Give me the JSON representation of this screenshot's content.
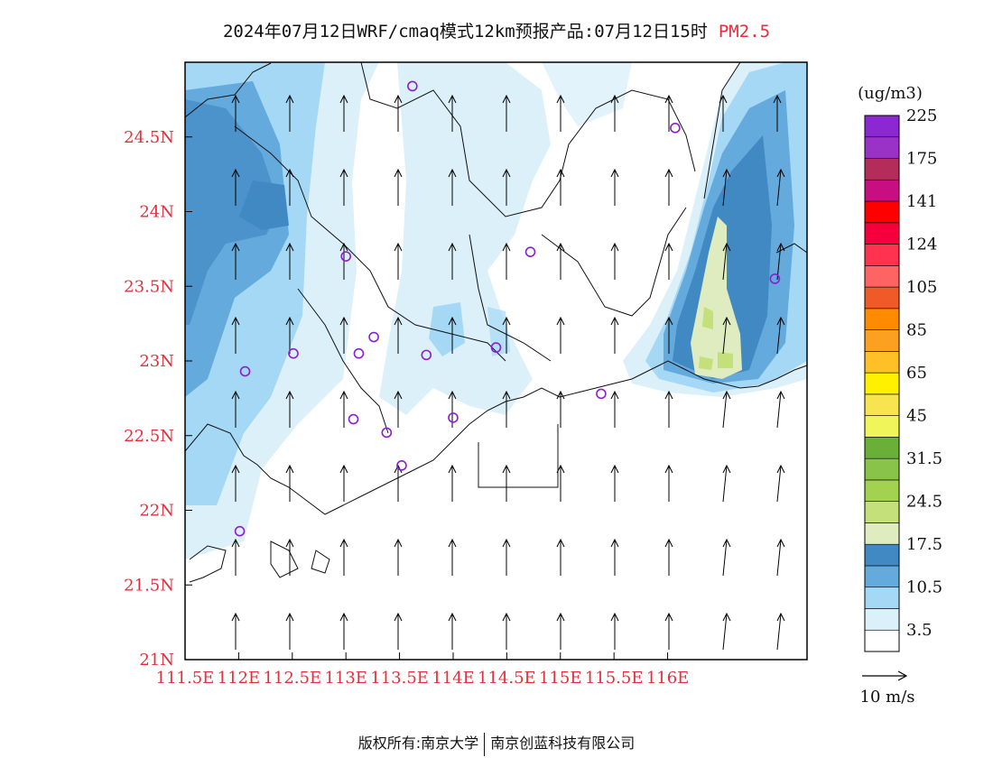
{
  "title": {
    "main": "2024年07月12日WRF/cmaq模式12km预报产品:07月12日15时",
    "variable": "PM2.5"
  },
  "map": {
    "lon_ticks": [
      "111.5E",
      "112E",
      "112.5E",
      "113E",
      "113.5E",
      "114E",
      "114.5E",
      "115E",
      "115.5E",
      "116E"
    ],
    "lat_ticks": [
      "24.5N",
      "24N",
      "23.5N",
      "23N",
      "22.5N",
      "22N",
      "21.5N",
      "21N"
    ],
    "lon_range": [
      111.5,
      117.3
    ],
    "lat_range": [
      21.0,
      25.0
    ],
    "wind_direction": "from south (northward arrows)",
    "stations": [
      {
        "lon": 113.62,
        "lat": 24.84
      },
      {
        "lon": 116.07,
        "lat": 24.56
      },
      {
        "lon": 113.0,
        "lat": 23.7
      },
      {
        "lon": 114.72,
        "lat": 23.73
      },
      {
        "lon": 117.0,
        "lat": 23.55
      },
      {
        "lon": 113.26,
        "lat": 23.16
      },
      {
        "lon": 112.51,
        "lat": 23.05
      },
      {
        "lon": 113.12,
        "lat": 23.05
      },
      {
        "lon": 113.75,
        "lat": 23.04
      },
      {
        "lon": 114.4,
        "lat": 23.09
      },
      {
        "lon": 112.06,
        "lat": 22.93
      },
      {
        "lon": 115.38,
        "lat": 22.78
      },
      {
        "lon": 113.07,
        "lat": 22.61
      },
      {
        "lon": 114.0,
        "lat": 22.62
      },
      {
        "lon": 113.38,
        "lat": 22.52
      },
      {
        "lon": 113.52,
        "lat": 22.3
      },
      {
        "lon": 112.01,
        "lat": 21.86
      }
    ]
  },
  "legend": {
    "unit": "(ug/m3)",
    "colors": [
      "#ffffff",
      "#dcf0fa",
      "#a5d8f5",
      "#64aadc",
      "#4189c3",
      "#dfecc0",
      "#c3e07a",
      "#a2d250",
      "#8ac34a",
      "#6ab038",
      "#f0f55a",
      "#f7e450",
      "#fff000",
      "#ffbf26",
      "#fba020",
      "#ff8c00",
      "#ef5a28",
      "#ff6464",
      "#ff3250",
      "#f5003c",
      "#ff0000",
      "#c80f82",
      "#b42d5a",
      "#9b32c8",
      "#8c28d2"
    ],
    "labels": [
      "3.5",
      "10.5",
      "17.5",
      "24.5",
      "31.5",
      "45",
      "65",
      "85",
      "105",
      "124",
      "141",
      "175",
      "225"
    ]
  },
  "wind_reference": {
    "label": "10 m/s"
  },
  "footer": {
    "left": "版权所有:南京大学",
    "right": "南京创蓝科技有限公司"
  }
}
